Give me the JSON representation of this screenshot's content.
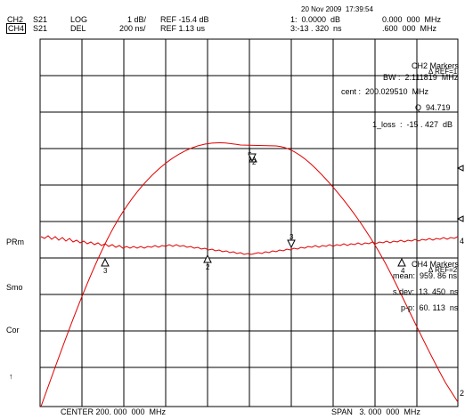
{
  "header": {
    "ch2_label": "CH2",
    "ch4_label": "CH4",
    "ch2_param": "S21",
    "ch4_param": "S21",
    "ch2_format": "LOG",
    "ch4_format": "DEL",
    "ch2_scale": "1 dB/",
    "ch4_scale": "200 ns/",
    "ch2_ref": "REF -15.4 dB",
    "ch4_ref": "REF 1.13 us",
    "datetime": "20 Nov 2009  17:39:54",
    "marker1_val": "1:  0.0000  dB",
    "marker1_freq": "0.000  000  MHz",
    "marker3_val": "3:-13 . 320  ns",
    "marker3_freq": ".600  000  MHz"
  },
  "ch2_markers": {
    "title": "CH2 Markers",
    "ref_label": "Δ REF=1",
    "bw": "BW :  2.111819  MHz",
    "cent": "cent :  200.029510  MHz",
    "q": "Q  94.719",
    "loss": "1_loss  :  -15 . 427  dB"
  },
  "ch4_markers": {
    "title": "CH4 Markers",
    "ref_label": "Δ REF=2",
    "mean": "mean:  959. 86 ns",
    "sdev": "s.dev:  13. 450  ns",
    "pp": "p-p:  60. 113  ns"
  },
  "left_labels": {
    "prm": "PRm",
    "smo": "Smo",
    "cor": "Cor",
    "arrow": "↑"
  },
  "right_labels": {
    "r4": "4",
    "r2": "2"
  },
  "marker_labels": {
    "m1": "1",
    "m2": "2",
    "m3": "3",
    "m3b": "3",
    "m2b": "2",
    "m4": "4"
  },
  "footer": {
    "center": "CENTER 200. 000  000  MHz",
    "span": "SPAN   3. 000  000  MHz"
  },
  "colors": {
    "trace": "#e00000",
    "grid": "#000000",
    "background": "#ffffff"
  }
}
